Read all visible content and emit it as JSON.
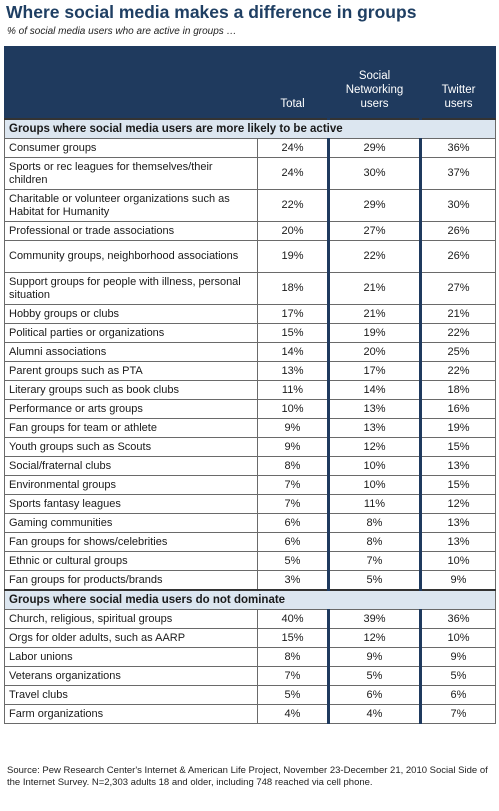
{
  "title": "Where social media makes a difference in groups",
  "subtitle": "% of social media users who are active in groups …",
  "columns": [
    "Total",
    "Social Networking users",
    "Twitter users"
  ],
  "source_label": "Source:",
  "source_text": "Pew Research Center's Internet & American Life Project, November 23-December 21, 2010 Social Side of the Internet Survey. N=2,303 adults 18 and older, including 748 reached via cell phone.",
  "chart_data": {
    "type": "table",
    "title": "Where social media makes a difference in groups",
    "subtitle": "% of social media users who are active in groups …",
    "series": [
      {
        "name": "Total"
      },
      {
        "name": "Social Networking users"
      },
      {
        "name": "Twitter users"
      }
    ],
    "sections": [
      {
        "heading": "Groups where social media users are more likely to be active",
        "rows": [
          {
            "label": "Consumer groups",
            "values": [
              "24%",
              "29%",
              "36%"
            ]
          },
          {
            "label": "Sports or rec leagues for themselves/their children",
            "values": [
              "24%",
              "30%",
              "37%"
            ]
          },
          {
            "label": "Charitable or volunteer organizations such as Habitat for Humanity",
            "values": [
              "22%",
              "29%",
              "30%"
            ]
          },
          {
            "label": "Professional or trade associations",
            "values": [
              "20%",
              "27%",
              "26%"
            ]
          },
          {
            "label": "Community groups, neighborhood associations",
            "values": [
              "19%",
              "22%",
              "26%"
            ]
          },
          {
            "label": "Support groups for people with illness, personal situation",
            "values": [
              "18%",
              "21%",
              "27%"
            ]
          },
          {
            "label": "Hobby groups or clubs",
            "values": [
              "17%",
              "21%",
              "21%"
            ]
          },
          {
            "label": "Political parties or organizations",
            "values": [
              "15%",
              "19%",
              "22%"
            ]
          },
          {
            "label": "Alumni associations",
            "values": [
              "14%",
              "20%",
              "25%"
            ]
          },
          {
            "label": "Parent groups such as PTA",
            "values": [
              "13%",
              "17%",
              "22%"
            ]
          },
          {
            "label": "Literary groups such as book clubs",
            "values": [
              "11%",
              "14%",
              "18%"
            ]
          },
          {
            "label": "Performance or arts groups",
            "values": [
              "10%",
              "13%",
              "16%"
            ]
          },
          {
            "label": "Fan groups for team or athlete",
            "values": [
              "9%",
              "13%",
              "19%"
            ]
          },
          {
            "label": "Youth groups such as Scouts",
            "values": [
              "9%",
              "12%",
              "15%"
            ]
          },
          {
            "label": "Social/fraternal clubs",
            "values": [
              "8%",
              "10%",
              "13%"
            ]
          },
          {
            "label": "Environmental groups",
            "values": [
              "7%",
              "10%",
              "15%"
            ]
          },
          {
            "label": "Sports fantasy leagues",
            "values": [
              "7%",
              "11%",
              "12%"
            ]
          },
          {
            "label": "Gaming communities",
            "values": [
              "6%",
              "8%",
              "13%"
            ]
          },
          {
            "label": "Fan groups for shows/celebrities",
            "values": [
              "6%",
              "8%",
              "13%"
            ]
          },
          {
            "label": "Ethnic or cultural groups",
            "values": [
              "5%",
              "7%",
              "10%"
            ]
          },
          {
            "label": "Fan groups for products/brands",
            "values": [
              "3%",
              "5%",
              "9%"
            ]
          }
        ]
      },
      {
        "heading": "Groups where social media users do not dominate",
        "rows": [
          {
            "label": "Church, religious, spiritual groups",
            "values": [
              "40%",
              "39%",
              "36%"
            ]
          },
          {
            "label": "Orgs for older adults, such as AARP",
            "values": [
              "15%",
              "12%",
              "10%"
            ]
          },
          {
            "label": "Labor unions",
            "values": [
              "8%",
              "9%",
              "9%"
            ]
          },
          {
            "label": "Veterans organizations",
            "values": [
              "7%",
              "5%",
              "5%"
            ]
          },
          {
            "label": "Travel clubs",
            "values": [
              "5%",
              "6%",
              "6%"
            ]
          },
          {
            "label": "Farm organizations",
            "values": [
              "4%",
              "4%",
              "7%"
            ]
          }
        ]
      }
    ]
  },
  "colors": {
    "title": "#1f3f63",
    "header_bg": "#1f3a5e",
    "section_bg": "#dce6f0"
  }
}
